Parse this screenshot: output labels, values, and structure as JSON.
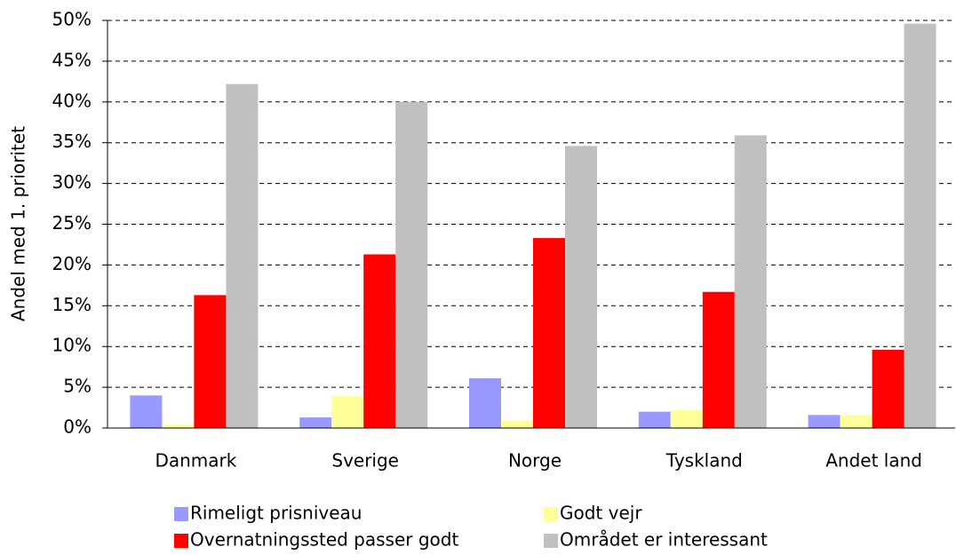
{
  "chart_data": {
    "type": "bar",
    "y_label": "Andel med 1. prioritet",
    "categories": [
      "Danmark",
      "Sverige",
      "Norge",
      "Tyskland",
      "Andet land"
    ],
    "series": [
      {
        "name": "Rimeligt prisniveau",
        "color": "#9999ff",
        "values": [
          4.0,
          1.3,
          6.1,
          2.0,
          1.6
        ]
      },
      {
        "name": "Godt vejr",
        "color": "#ffff99",
        "values": [
          0.4,
          3.9,
          0.9,
          2.2,
          1.6
        ]
      },
      {
        "name": "Overnatningssted passer godt",
        "color": "#ff0000",
        "values": [
          16.3,
          21.3,
          23.3,
          16.7,
          9.6
        ]
      },
      {
        "name": "Området er interessant",
        "color": "#c0c0c0",
        "values": [
          42.2,
          40.0,
          34.6,
          35.9,
          49.6
        ]
      }
    ],
    "ylim": [
      0,
      50
    ],
    "yticks": [
      {
        "value": 0,
        "label": "0%"
      },
      {
        "value": 5,
        "label": "5%"
      },
      {
        "value": 10,
        "label": "10%"
      },
      {
        "value": 15,
        "label": "15%"
      },
      {
        "value": 20,
        "label": "20%"
      },
      {
        "value": 25,
        "label": "25%"
      },
      {
        "value": 30,
        "label": "30%"
      },
      {
        "value": 35,
        "label": "35%"
      },
      {
        "value": 40,
        "label": "40%"
      },
      {
        "value": 45,
        "label": "45%"
      },
      {
        "value": 50,
        "label": "50%"
      }
    ],
    "grid": true,
    "legend": "bottom"
  }
}
